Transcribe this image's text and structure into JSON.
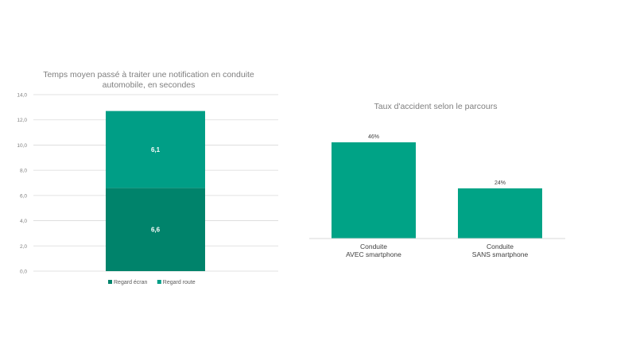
{
  "chart_data": [
    {
      "type": "bar",
      "stacked": true,
      "title_lines": [
        "Temps moyen passé à traiter une notification en conduite",
        "automobile, en secondes"
      ],
      "categories": [
        ""
      ],
      "series": [
        {
          "name": "Regard écran",
          "values": [
            6.6
          ],
          "value_labels": [
            "6,6"
          ],
          "color": "#00836b"
        },
        {
          "name": "Regard route",
          "values": [
            6.1
          ],
          "value_labels": [
            "6,1"
          ],
          "color": "#009e86"
        }
      ],
      "ylim": [
        0,
        14
      ],
      "y_ticks": [
        0,
        2,
        4,
        6,
        8,
        10,
        12,
        14
      ],
      "y_tick_labels": [
        "0,0",
        "2,0",
        "4,0",
        "6,0",
        "8,0",
        "10,0",
        "12,0",
        "14,0"
      ],
      "grid": true,
      "legend": "bottom"
    },
    {
      "type": "bar",
      "title": "Taux d'accident selon le parcours",
      "categories": [
        [
          "Conduite",
          "AVEC smartphone"
        ],
        [
          "Conduite",
          "SANS smartphone"
        ]
      ],
      "values": [
        46,
        24
      ],
      "value_labels": [
        "46%",
        "24%"
      ],
      "color": "#00a386",
      "ylim": [
        0,
        50
      ],
      "grid": false
    }
  ]
}
